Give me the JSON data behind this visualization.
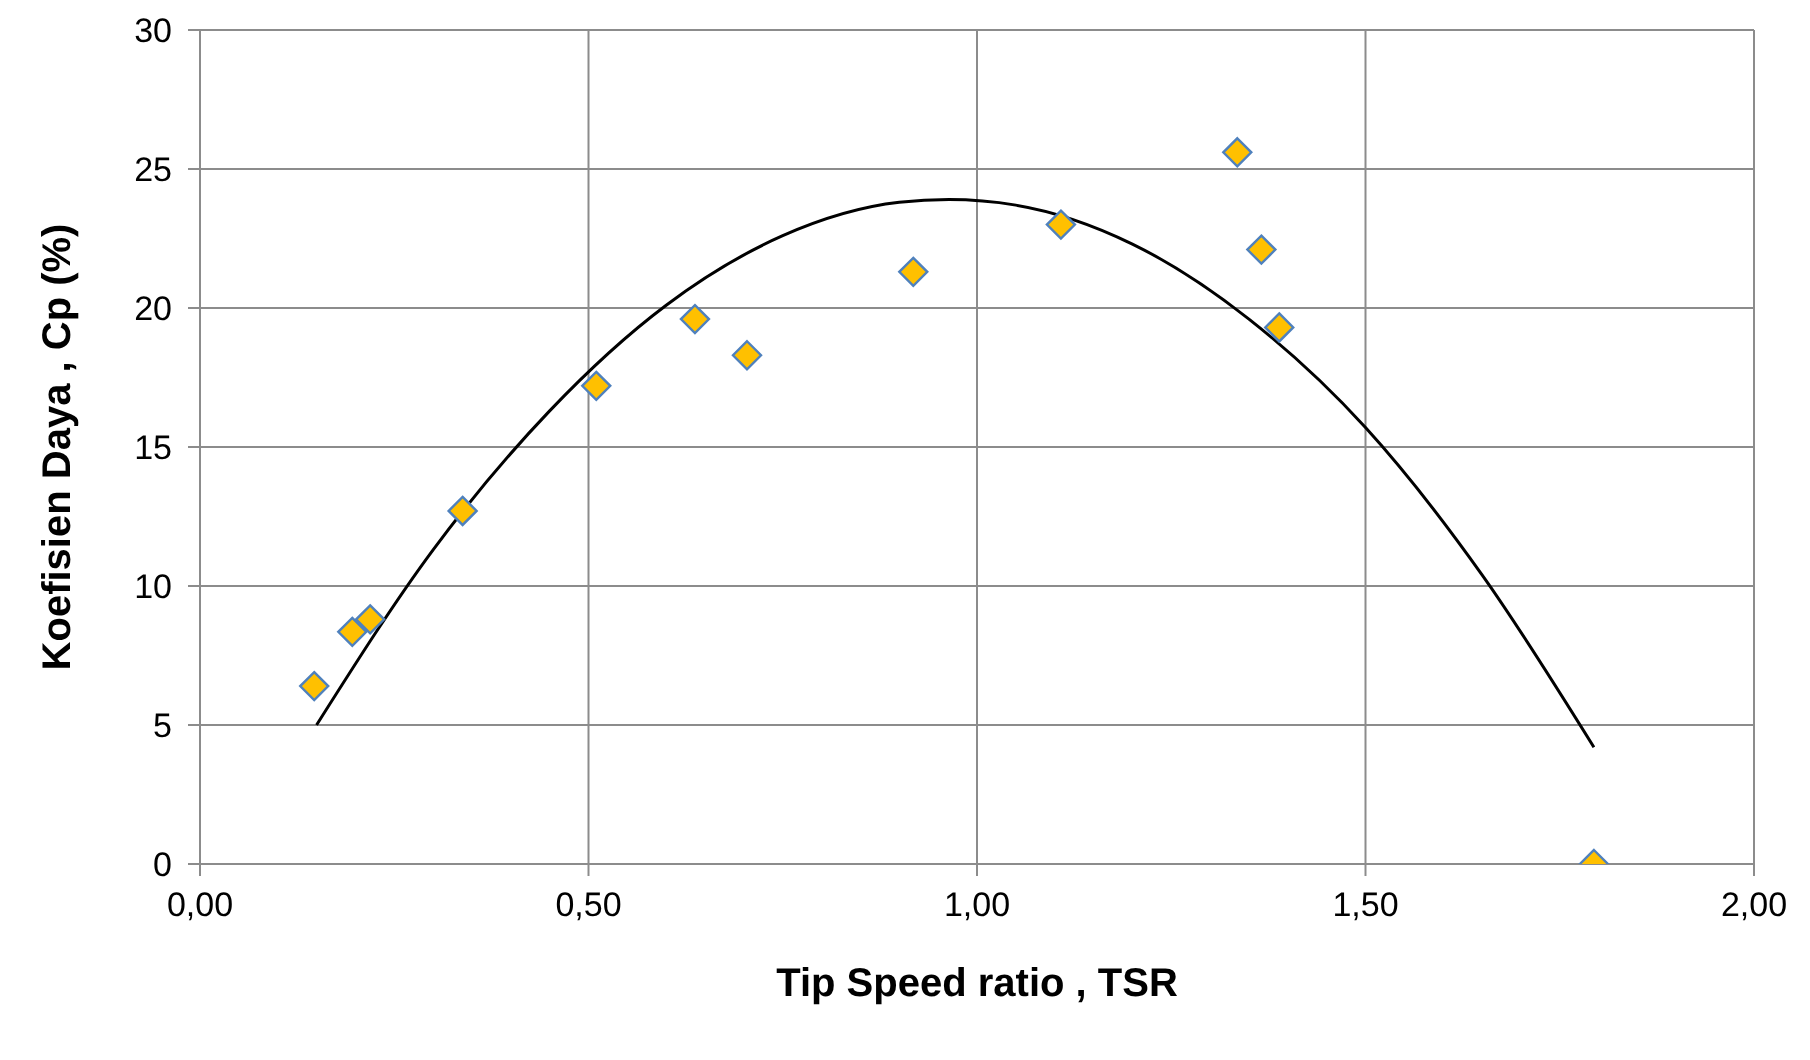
{
  "chart_data": {
    "type": "scatter",
    "xlabel": "Tip Speed ratio , TSR",
    "ylabel": "Koefisien Daya , Cp (%)",
    "xlim": [
      0,
      2
    ],
    "xticks": [
      {
        "value": 0,
        "label": "0,00"
      },
      {
        "value": 0.5,
        "label": "0,50"
      },
      {
        "value": 1,
        "label": "1,00"
      },
      {
        "value": 1.5,
        "label": "1,50"
      },
      {
        "value": 2,
        "label": "2,00"
      }
    ],
    "ylim": [
      0,
      30
    ],
    "yticks": [
      0,
      5,
      10,
      15,
      20,
      25,
      30
    ],
    "grid": true,
    "legend": false,
    "series": [
      {
        "color": "#ffc000",
        "marker": "diamond",
        "x": [
          0.147,
          0.196,
          0.219,
          0.338,
          0.51,
          0.637,
          0.704,
          0.918,
          1.108,
          1.335,
          1.366,
          1.389,
          1.794
        ],
        "values": [
          6.4,
          8.35,
          8.8,
          12.7,
          17.2,
          19.6,
          18.3,
          21.3,
          23.0,
          25.6,
          22.1,
          19.3,
          0
        ]
      },
      {
        "type": "line",
        "color": "#000000",
        "marker": "none",
        "x": [
          0.15,
          0.3,
          0.45,
          0.6,
          0.75,
          0.9,
          0.964,
          1.05,
          1.2,
          1.35,
          1.5,
          1.65,
          1.794
        ],
        "values": [
          5.0,
          11.3,
          16.3,
          20.1,
          22.6,
          23.8,
          23.9,
          23.7,
          22.3,
          19.6,
          15.7,
          10.4,
          4.2
        ]
      }
    ]
  }
}
